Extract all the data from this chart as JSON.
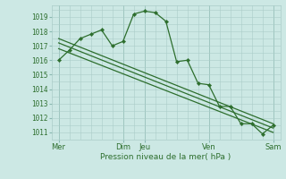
{
  "xlabel": "Pression niveau de la mer( hPa )",
  "bg_color": "#cce8e4",
  "grid_color": "#aaccc8",
  "line_color": "#2d6e2d",
  "marker_color": "#2d6e2d",
  "ylim": [
    1010.5,
    1019.8
  ],
  "xlim": [
    -8,
    248
  ],
  "day_labels": [
    "Mer",
    "Dim",
    "Jeu",
    "Ven",
    "Sam"
  ],
  "day_positions": [
    0,
    72,
    96,
    168,
    240
  ],
  "yticks": [
    1011,
    1012,
    1013,
    1014,
    1015,
    1016,
    1017,
    1018,
    1019
  ],
  "series1": {
    "x": [
      0,
      12,
      24,
      36,
      48,
      60,
      72,
      84,
      96,
      108,
      120,
      132,
      144,
      156,
      168,
      180,
      192,
      204,
      216,
      228,
      240
    ],
    "y": [
      1016.0,
      1016.7,
      1017.5,
      1017.8,
      1018.1,
      1017.0,
      1017.3,
      1019.2,
      1019.4,
      1019.3,
      1018.7,
      1015.9,
      1016.0,
      1014.4,
      1014.3,
      1012.8,
      1012.8,
      1011.6,
      1011.6,
      1010.9,
      1011.5
    ]
  },
  "series2": {
    "x": [
      0,
      240
    ],
    "y": [
      1017.5,
      1011.6
    ]
  },
  "series3": {
    "x": [
      0,
      240
    ],
    "y": [
      1017.2,
      1011.3
    ]
  },
  "series4": {
    "x": [
      0,
      240
    ],
    "y": [
      1016.8,
      1011.0
    ]
  }
}
